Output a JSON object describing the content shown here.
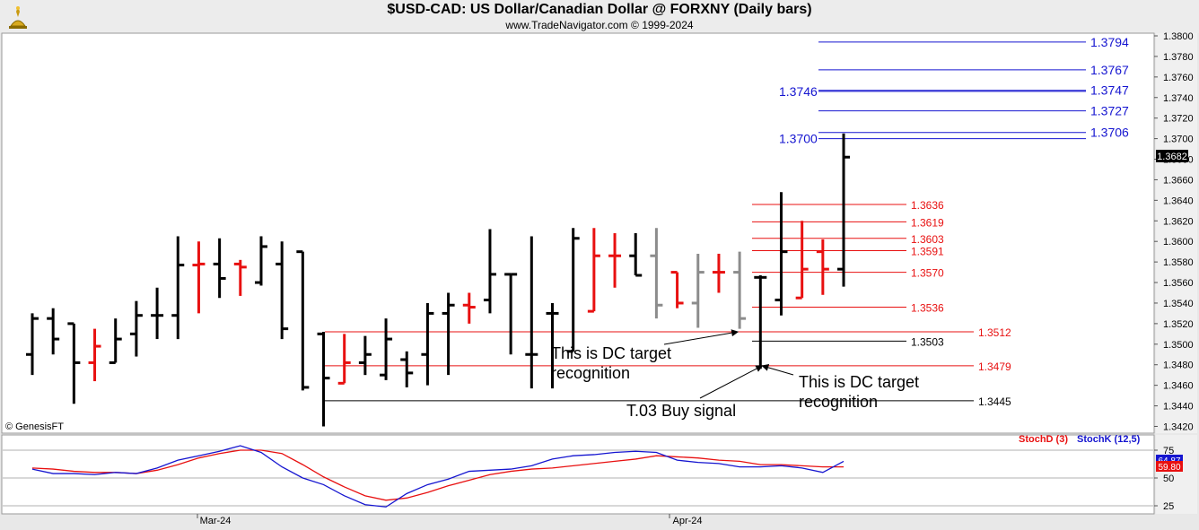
{
  "header": {
    "title": "$USD-CAD:  US Dollar/Canadian Dollar @ FORXNY  (Daily bars)",
    "subtitle": "www.TradeNavigator.com © 1999-2024",
    "copyright": "© GenesisFT"
  },
  "colors": {
    "up": "#000000",
    "down": "#e81010",
    "neutral": "#8c8c8c",
    "blue_level": "#1515d0",
    "red_level": "#e81010",
    "black_level": "#000000",
    "stoch_d": "#e81010",
    "stoch_k": "#1515d0"
  },
  "chart_data": [
    {
      "type": "ohlc",
      "title": "$USD-CAD:  US Dollar/Canadian Dollar @ FORXNY  (Daily bars)",
      "ylim": [
        1.3415,
        1.3813
      ],
      "y_ticks": [
        "1.3800",
        "1.3780",
        "1.3760",
        "1.3740",
        "1.3720",
        "1.3700",
        "1.3680",
        "1.3660",
        "1.3640",
        "1.3620",
        "1.3600",
        "1.3580",
        "1.3560",
        "1.3540",
        "1.3520",
        "1.3500",
        "1.3480",
        "1.3460",
        "1.3440",
        "1.3420"
      ],
      "x_labels": [
        "Mar-24",
        "Apr-24"
      ],
      "last_price": "1.3682",
      "bars": [
        {
          "o": 1.349,
          "h": 1.353,
          "l": 1.347,
          "c": 1.3525,
          "col": "up"
        },
        {
          "o": 1.3525,
          "h": 1.3535,
          "l": 1.349,
          "c": 1.3505,
          "col": "up"
        },
        {
          "o": 1.352,
          "h": 1.352,
          "l": 1.3442,
          "c": 1.3482,
          "col": "up"
        },
        {
          "o": 1.3482,
          "h": 1.3515,
          "l": 1.3464,
          "c": 1.3498,
          "col": "down"
        },
        {
          "o": 1.3482,
          "h": 1.3525,
          "l": 1.3482,
          "c": 1.3505,
          "col": "up"
        },
        {
          "o": 1.351,
          "h": 1.3542,
          "l": 1.3488,
          "c": 1.3528,
          "col": "up"
        },
        {
          "o": 1.3528,
          "h": 1.3555,
          "l": 1.3505,
          "c": 1.3528,
          "col": "up"
        },
        {
          "o": 1.3528,
          "h": 1.3605,
          "l": 1.3505,
          "c": 1.3577,
          "col": "up"
        },
        {
          "o": 1.3577,
          "h": 1.36,
          "l": 1.353,
          "c": 1.3578,
          "col": "down"
        },
        {
          "o": 1.3578,
          "h": 1.3603,
          "l": 1.3545,
          "c": 1.3564,
          "col": "up"
        },
        {
          "o": 1.3578,
          "h": 1.3582,
          "l": 1.3547,
          "c": 1.3575,
          "col": "down"
        },
        {
          "o": 1.356,
          "h": 1.3605,
          "l": 1.3557,
          "c": 1.3595,
          "col": "up"
        },
        {
          "o": 1.3578,
          "h": 1.36,
          "l": 1.3505,
          "c": 1.3515,
          "col": "up"
        },
        {
          "o": 1.359,
          "h": 1.359,
          "l": 1.3455,
          "c": 1.3458,
          "col": "up"
        },
        {
          "o": 1.351,
          "h": 1.3512,
          "l": 1.342,
          "c": 1.3467,
          "col": "up"
        },
        {
          "o": 1.3462,
          "h": 1.351,
          "l": 1.3462,
          "c": 1.3482,
          "col": "down"
        },
        {
          "o": 1.3482,
          "h": 1.3508,
          "l": 1.347,
          "c": 1.349,
          "col": "up"
        },
        {
          "o": 1.347,
          "h": 1.3525,
          "l": 1.3465,
          "c": 1.3505,
          "col": "up"
        },
        {
          "o": 1.3485,
          "h": 1.3493,
          "l": 1.3458,
          "c": 1.3472,
          "col": "up"
        },
        {
          "o": 1.349,
          "h": 1.354,
          "l": 1.346,
          "c": 1.353,
          "col": "up"
        },
        {
          "o": 1.353,
          "h": 1.355,
          "l": 1.347,
          "c": 1.3538,
          "col": "up"
        },
        {
          "o": 1.3538,
          "h": 1.355,
          "l": 1.352,
          "c": 1.3536,
          "col": "down"
        },
        {
          "o": 1.3543,
          "h": 1.3612,
          "l": 1.353,
          "c": 1.3568,
          "col": "up"
        },
        {
          "o": 1.3568,
          "h": 1.3568,
          "l": 1.349,
          "c": 1.3568,
          "col": "up"
        },
        {
          "o": 1.349,
          "h": 1.3605,
          "l": 1.3457,
          "c": 1.349,
          "col": "up"
        },
        {
          "o": 1.353,
          "h": 1.354,
          "l": 1.3457,
          "c": 1.353,
          "col": "up"
        },
        {
          "o": 1.3493,
          "h": 1.3613,
          "l": 1.3493,
          "c": 1.3603,
          "col": "up"
        },
        {
          "o": 1.3532,
          "h": 1.3613,
          "l": 1.3532,
          "c": 1.3586,
          "col": "down"
        },
        {
          "o": 1.3586,
          "h": 1.3608,
          "l": 1.3555,
          "c": 1.3586,
          "col": "down"
        },
        {
          "o": 1.3586,
          "h": 1.3608,
          "l": 1.3567,
          "c": 1.3567,
          "col": "up"
        },
        {
          "o": 1.3586,
          "h": 1.3613,
          "l": 1.3525,
          "c": 1.3538,
          "col": "neutral"
        },
        {
          "o": 1.357,
          "h": 1.357,
          "l": 1.3535,
          "c": 1.354,
          "col": "down"
        },
        {
          "o": 1.354,
          "h": 1.3588,
          "l": 1.3516,
          "c": 1.357,
          "col": "neutral"
        },
        {
          "o": 1.357,
          "h": 1.3588,
          "l": 1.355,
          "c": 1.357,
          "col": "down"
        },
        {
          "o": 1.357,
          "h": 1.359,
          "l": 1.3515,
          "c": 1.3525,
          "col": "neutral"
        },
        {
          "o": 1.3565,
          "h": 1.3567,
          "l": 1.3476,
          "c": 1.3565,
          "col": "up"
        },
        {
          "o": 1.3543,
          "h": 1.3648,
          "l": 1.3528,
          "c": 1.359,
          "col": "up"
        },
        {
          "o": 1.3545,
          "h": 1.362,
          "l": 1.3545,
          "c": 1.3573,
          "col": "down"
        },
        {
          "o": 1.359,
          "h": 1.3602,
          "l": 1.3548,
          "c": 1.3573,
          "col": "down"
        },
        {
          "o": 1.3573,
          "h": 1.3705,
          "l": 1.3556,
          "c": 1.3682,
          "col": "up"
        }
      ],
      "levels": [
        {
          "value": 1.3794,
          "label": "1.3794",
          "color": "blue"
        },
        {
          "value": 1.3767,
          "label": "1.3767",
          "color": "blue"
        },
        {
          "value": 1.3747,
          "label": "1.3747",
          "color": "blue"
        },
        {
          "value": 1.3746,
          "label": "1.3746",
          "color": "blue"
        },
        {
          "value": 1.3727,
          "label": "1.3727",
          "color": "blue"
        },
        {
          "value": 1.3706,
          "label": "1.3706",
          "color": "blue"
        },
        {
          "value": 1.37,
          "label": "1.3700",
          "color": "blue"
        },
        {
          "value": 1.3636,
          "label": "1.3636",
          "color": "red"
        },
        {
          "value": 1.3619,
          "label": "1.3619",
          "color": "red"
        },
        {
          "value": 1.3603,
          "label": "1.3603",
          "color": "red"
        },
        {
          "value": 1.3591,
          "label": "1.3591",
          "color": "red"
        },
        {
          "value": 1.357,
          "label": "1.3570",
          "color": "red"
        },
        {
          "value": 1.3536,
          "label": "1.3536",
          "color": "red"
        },
        {
          "value": 1.3512,
          "label": "1.3512",
          "color": "red"
        },
        {
          "value": 1.3503,
          "label": "1.3503",
          "color": "black"
        },
        {
          "value": 1.3479,
          "label": "1.3479",
          "color": "red"
        },
        {
          "value": 1.3445,
          "label": "1.3445",
          "color": "black"
        }
      ],
      "annotations": [
        {
          "text": [
            "This is DC target",
            "recognition"
          ],
          "target_bar": 34,
          "target_value": 1.3512
        },
        {
          "text": [
            "This is DC target",
            "recognition"
          ],
          "target_bar": 35,
          "target_value": 1.3479
        },
        {
          "text": [
            "T.03 Buy signal"
          ],
          "target_bar": 35,
          "target_value": 1.3479
        }
      ]
    },
    {
      "type": "line",
      "title": "Stochastic",
      "ylim": [
        20,
        80
      ],
      "y_ticks": [
        "75",
        "50",
        "25"
      ],
      "legend": [
        "StochD (3)",
        "StochK (12,5)"
      ],
      "last_values": {
        "stoch_k": "64.87",
        "stoch_d": "59.80"
      },
      "series": [
        {
          "name": "StochD (3)",
          "values": [
            59,
            58,
            56,
            55,
            55,
            54,
            57,
            62,
            68,
            72,
            75,
            75,
            72,
            62,
            51,
            42,
            34,
            30,
            32,
            37,
            43,
            48,
            53,
            56,
            58,
            59,
            61,
            63,
            65,
            67,
            70,
            69,
            68,
            66,
            65,
            62,
            62,
            61,
            60,
            60
          ]
        },
        {
          "name": "StochK (12,5)",
          "values": [
            58,
            54,
            54,
            53,
            55,
            54,
            59,
            66,
            70,
            74,
            79,
            73,
            60,
            50,
            44,
            34,
            26,
            24,
            36,
            44,
            49,
            56,
            57,
            58,
            61,
            67,
            70,
            71,
            73,
            74,
            73,
            66,
            64,
            63,
            60,
            60,
            61,
            59,
            55,
            65
          ]
        }
      ]
    }
  ]
}
